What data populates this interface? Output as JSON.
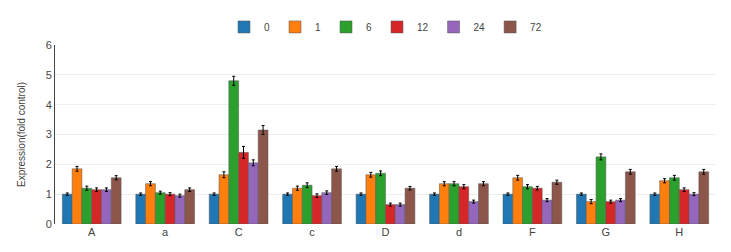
{
  "chart_data": {
    "type": "bar",
    "ylabel": "Expression(fold control)",
    "categories": [
      "A",
      "a",
      "C",
      "c",
      "D",
      "d",
      "F",
      "G",
      "H"
    ],
    "series": [
      {
        "name": "0",
        "values": [
          1.0,
          1.0,
          1.0,
          1.0,
          1.0,
          1.0,
          1.0,
          1.0,
          1.0
        ],
        "errors": [
          0.04,
          0.04,
          0.04,
          0.04,
          0.04,
          0.04,
          0.04,
          0.04,
          0.04
        ]
      },
      {
        "name": "1",
        "values": [
          1.85,
          1.35,
          1.65,
          1.2,
          1.65,
          1.35,
          1.55,
          0.75,
          1.45
        ],
        "errors": [
          0.08,
          0.07,
          0.1,
          0.07,
          0.08,
          0.07,
          0.08,
          0.07,
          0.07
        ]
      },
      {
        "name": "6",
        "values": [
          1.2,
          1.05,
          4.8,
          1.3,
          1.7,
          1.35,
          1.25,
          2.25,
          1.55
        ],
        "errors": [
          0.07,
          0.05,
          0.15,
          0.08,
          0.08,
          0.07,
          0.07,
          0.1,
          0.08
        ]
      },
      {
        "name": "12",
        "values": [
          1.15,
          1.0,
          2.4,
          0.95,
          0.65,
          1.25,
          1.2,
          0.75,
          1.15
        ],
        "errors": [
          0.06,
          0.05,
          0.2,
          0.06,
          0.05,
          0.07,
          0.06,
          0.05,
          0.06
        ]
      },
      {
        "name": "24",
        "values": [
          1.15,
          0.95,
          2.05,
          1.05,
          0.65,
          0.75,
          0.8,
          0.8,
          1.0
        ],
        "errors": [
          0.06,
          0.05,
          0.1,
          0.06,
          0.05,
          0.05,
          0.05,
          0.05,
          0.05
        ]
      },
      {
        "name": "72",
        "values": [
          1.55,
          1.15,
          3.15,
          1.85,
          1.2,
          1.35,
          1.4,
          1.75,
          1.75
        ],
        "errors": [
          0.07,
          0.06,
          0.15,
          0.08,
          0.06,
          0.07,
          0.07,
          0.08,
          0.08
        ]
      }
    ],
    "ylim": [
      0,
      6
    ],
    "yticks": [
      0,
      1,
      2,
      3,
      4,
      5,
      6
    ],
    "grid": true,
    "legend": "top"
  }
}
